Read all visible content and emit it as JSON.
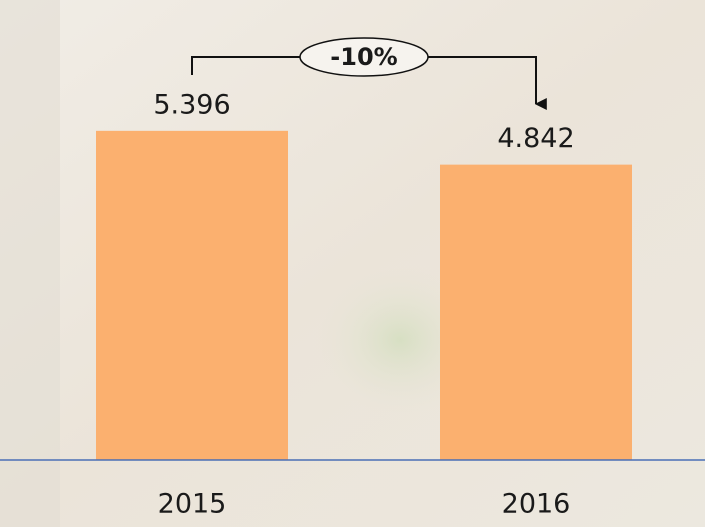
{
  "chart_data": {
    "type": "bar",
    "categories": [
      "2015",
      "2016"
    ],
    "values": [
      5.396,
      4.842
    ],
    "color": "#fbb06f",
    "ylim": [
      0,
      7.5
    ],
    "annotation": "-10%"
  }
}
